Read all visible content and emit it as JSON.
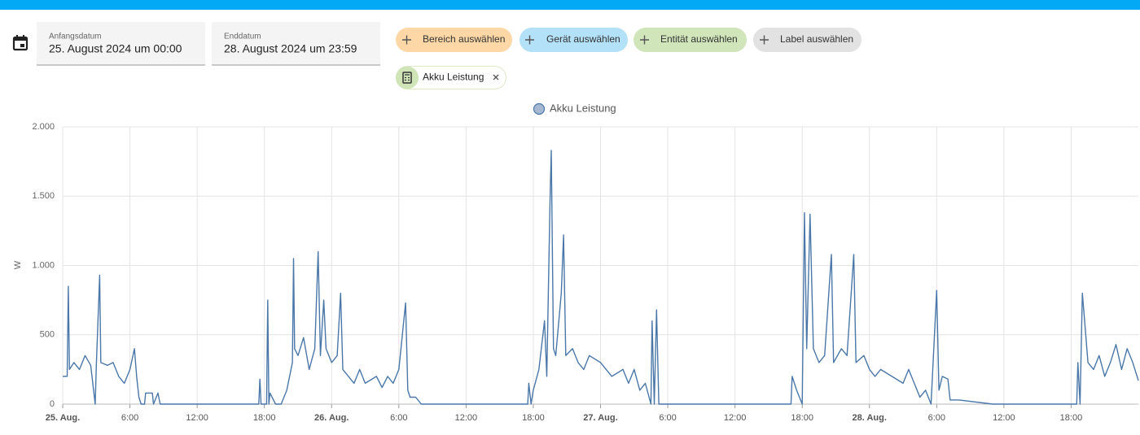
{
  "date_fields": [
    {
      "label": "Anfangsdatum",
      "value": "25. August 2024 um 00:00"
    },
    {
      "label": "Enddatum",
      "value": "28. August 2024 um 23:59"
    }
  ],
  "chips": [
    "Bereich auswählen",
    "Gerät auswählen",
    "Entität auswählen",
    "Label auswählen"
  ],
  "selected_entity": "Akku Leistung",
  "chart_data": {
    "type": "line",
    "ylabel": "W",
    "x": [
      0,
      0.4,
      0.5,
      0.6,
      1,
      1.5,
      2,
      2.5,
      2.9,
      3.0,
      3.3,
      3.4,
      4,
      4.5,
      5,
      5.5,
      6,
      6.4,
      6.6,
      6.8,
      7.0,
      7.3,
      7.4,
      8.0,
      8.1,
      8.5,
      8.7,
      17.5,
      17.6,
      17.7,
      18.2,
      18.3,
      18.4,
      18.5,
      19,
      19.5,
      20,
      20.5,
      20.6,
      20.7,
      21,
      21.5,
      22,
      22.5,
      22.8,
      23,
      23.3,
      23.5,
      24,
      24.5,
      24.8,
      25,
      25.5,
      26,
      26.5,
      27,
      28,
      28.5,
      29,
      29.5,
      30,
      30.6,
      30.8,
      31,
      31.5,
      32,
      41.5,
      41.6,
      41.8,
      42,
      42.5,
      43,
      43.2,
      43.5,
      43.6,
      43.8,
      44,
      44.5,
      44.7,
      44.9,
      45.5,
      46,
      46.5,
      47,
      48,
      48.5,
      49,
      50,
      50.5,
      51,
      51.5,
      52,
      52.5,
      52.6,
      52.8,
      53.0,
      53.2,
      53.5,
      65,
      65.1,
      65.5,
      66,
      66.2,
      66.4,
      66.7,
      67,
      67.5,
      68,
      68.6,
      68.8,
      69.5,
      70,
      70.6,
      70.8,
      71.5,
      72,
      72.5,
      73,
      74,
      75,
      75.5,
      76,
      76.5,
      77,
      77.5,
      78,
      78.2,
      78.5,
      79,
      79.2,
      80,
      83,
      90.5,
      90.6,
      90.8,
      91,
      91.2,
      91.5,
      92,
      92.5,
      93,
      93.5,
      94,
      94.5,
      95,
      95.5,
      96
    ],
    "series": [
      {
        "name": "Akku Leistung",
        "color": "#4a77a8",
        "values": [
          200,
          200,
          850,
          250,
          300,
          250,
          350,
          280,
          0,
          280,
          930,
          300,
          280,
          300,
          200,
          150,
          250,
          400,
          200,
          50,
          0,
          0,
          80,
          80,
          0,
          80,
          0,
          0,
          180,
          0,
          0,
          750,
          0,
          80,
          0,
          0,
          100,
          300,
          1050,
          400,
          350,
          480,
          250,
          400,
          1100,
          350,
          750,
          400,
          300,
          350,
          800,
          250,
          200,
          150,
          250,
          150,
          200,
          120,
          200,
          150,
          250,
          730,
          100,
          50,
          50,
          0,
          0,
          150,
          0,
          100,
          250,
          600,
          200,
          1500,
          1830,
          400,
          350,
          800,
          1220,
          350,
          400,
          300,
          250,
          350,
          300,
          250,
          200,
          250,
          150,
          250,
          100,
          150,
          0,
          600,
          0,
          680,
          0,
          0,
          0,
          200,
          100,
          0,
          1380,
          400,
          1370,
          400,
          300,
          350,
          1080,
          300,
          400,
          350,
          1080,
          300,
          350,
          250,
          200,
          250,
          200,
          150,
          250,
          150,
          50,
          100,
          0,
          820,
          100,
          200,
          180,
          30,
          30,
          0,
          0,
          300,
          0,
          800,
          600,
          300,
          250,
          350,
          200,
          300,
          430,
          250,
          400,
          300,
          170
        ]
      }
    ],
    "xlim": [
      0,
      96
    ],
    "xticks": [
      {
        "value": 0,
        "label": "25. Aug."
      },
      {
        "value": 6,
        "label": "6:00"
      },
      {
        "value": 12,
        "label": "12:00"
      },
      {
        "value": 18,
        "label": "18:00"
      },
      {
        "value": 24,
        "label": "26. Aug."
      },
      {
        "value": 30,
        "label": "6:00"
      },
      {
        "value": 36,
        "label": "12:00"
      },
      {
        "value": 42,
        "label": "18:00"
      },
      {
        "value": 48,
        "label": "27. Aug."
      },
      {
        "value": 54,
        "label": "6:00"
      },
      {
        "value": 60,
        "label": "12:00"
      },
      {
        "value": 66,
        "label": "18:00"
      },
      {
        "value": 72,
        "label": "28. Aug."
      },
      {
        "value": 78,
        "label": "6:00"
      },
      {
        "value": 84,
        "label": "12:00"
      },
      {
        "value": 90,
        "label": "18:00"
      }
    ],
    "ylim": [
      0,
      2000
    ],
    "yticks": [
      0,
      500,
      {
        "value": 1000,
        "label": "1.000"
      },
      {
        "value": 1500,
        "label": "1.500"
      },
      {
        "value": 2000,
        "label": "2.000"
      }
    ],
    "grid": true
  }
}
